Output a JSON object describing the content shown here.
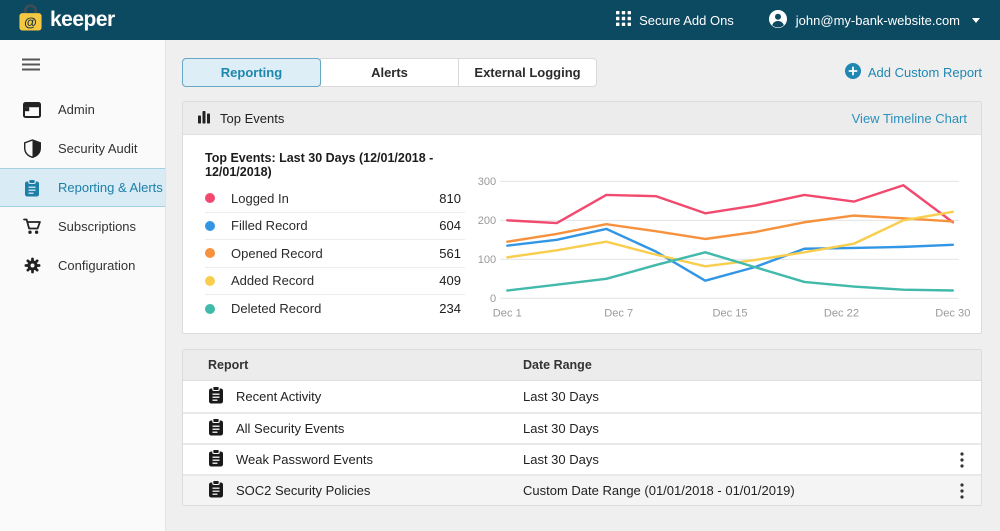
{
  "header": {
    "brand": "keeper",
    "secure_addons": "Secure Add Ons",
    "account_email": "john@my-bank-website.com"
  },
  "sidebar": {
    "items": [
      {
        "label": "Admin",
        "icon": "window",
        "active": false
      },
      {
        "label": "Security Audit",
        "icon": "shield",
        "active": false
      },
      {
        "label": "Reporting & Alerts",
        "icon": "clipboard",
        "active": true
      },
      {
        "label": "Subscriptions",
        "icon": "cart",
        "active": false
      },
      {
        "label": "Configuration",
        "icon": "gear",
        "active": false
      }
    ]
  },
  "tabs": [
    {
      "label": "Reporting",
      "active": true
    },
    {
      "label": "Alerts",
      "active": false
    },
    {
      "label": "External Logging",
      "active": false
    }
  ],
  "add_custom_report": "Add Custom Report",
  "top_events": {
    "panel_title": "Top Events",
    "view_link": "View Timeline Chart",
    "subtitle": "Top Events: Last 30 Days (12/01/2018 - 12/01/2018)",
    "legend": [
      {
        "label": "Logged In",
        "value": "810",
        "color": "#f14a6e"
      },
      {
        "label": "Filled Record",
        "value": "604",
        "color": "#3396e5"
      },
      {
        "label": "Opened Record",
        "value": "561",
        "color": "#f6913e"
      },
      {
        "label": "Added Record",
        "value": "409",
        "color": "#f9ce4e"
      },
      {
        "label": "Deleted Record",
        "value": "234",
        "color": "#41b9ab"
      }
    ]
  },
  "chart_data": {
    "type": "line",
    "title": "Top Events: Last 30 Days (12/01/2018 - 12/01/2018)",
    "x_labels": [
      "Dec 1",
      "Dec 7",
      "Dec 15",
      "Dec 22",
      "Dec 30"
    ],
    "ylim": [
      0,
      300
    ],
    "yticks": [
      0,
      100,
      200,
      300
    ],
    "grid": true,
    "legend_position": "left",
    "series": [
      {
        "name": "Logged In",
        "color": "#f14a6e",
        "total": 810,
        "values": [
          200,
          193,
          265,
          262,
          218,
          238,
          265,
          248,
          290,
          195
        ]
      },
      {
        "name": "Filled Record",
        "color": "#3396e5",
        "total": 604,
        "values": [
          135,
          150,
          178,
          120,
          45,
          80,
          127,
          129,
          132,
          137
        ]
      },
      {
        "name": "Opened Record",
        "color": "#f6913e",
        "total": 561,
        "values": [
          145,
          165,
          190,
          172,
          152,
          170,
          195,
          212,
          205,
          197
        ]
      },
      {
        "name": "Added Record",
        "color": "#f9ce4e",
        "total": 409,
        "values": [
          105,
          123,
          145,
          112,
          82,
          98,
          118,
          140,
          200,
          222
        ]
      },
      {
        "name": "Deleted Record",
        "color": "#41b9ab",
        "total": 234,
        "values": [
          20,
          35,
          50,
          85,
          118,
          80,
          42,
          30,
          22,
          20
        ]
      }
    ]
  },
  "table": {
    "columns": [
      "Report",
      "Date Range"
    ],
    "rows": [
      {
        "report": "Recent Activity",
        "date_range": "Last 30 Days",
        "menu": false,
        "highlighted": false
      },
      {
        "report": "All Security Events",
        "date_range": "Last 30 Days",
        "menu": false,
        "highlighted": false
      },
      {
        "report": "Weak Password Events",
        "date_range": "Last 30 Days",
        "menu": true,
        "highlighted": false
      },
      {
        "report": "SOC2 Security Policies",
        "date_range": "Custom Date Range (01/01/2018 - 01/01/2019)",
        "menu": true,
        "highlighted": true
      }
    ]
  }
}
